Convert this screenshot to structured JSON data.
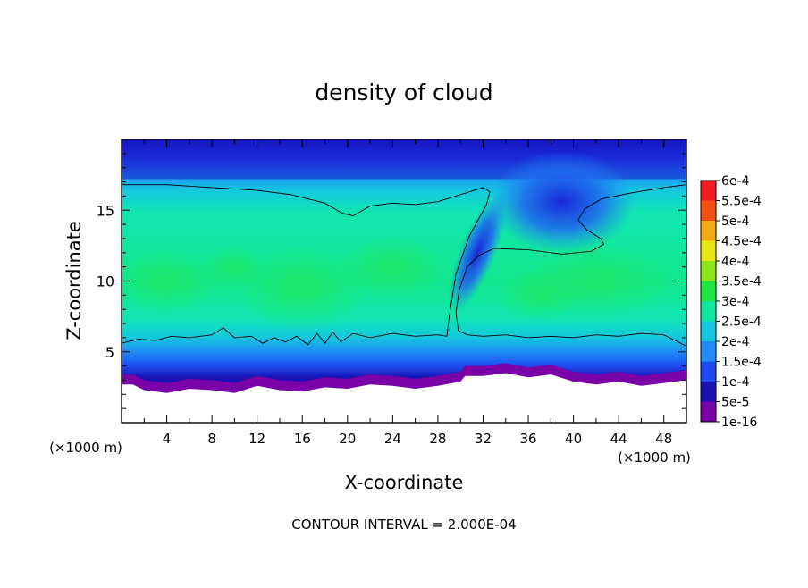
{
  "chart_data": {
    "type": "heatmap",
    "title": "density of cloud",
    "xlabel": "X-coordinate",
    "ylabel": "Z-coordinate",
    "x_unit_label": "(×1000 m)",
    "x_unit_label_right": "(×1000 m)",
    "footer": "CONTOUR INTERVAL = 2.000E-04",
    "xlim": [
      0,
      50
    ],
    "ylim": [
      0,
      20
    ],
    "x_ticks": [
      {
        "value": 4,
        "label": "4"
      },
      {
        "value": 8,
        "label": "8"
      },
      {
        "value": 12,
        "label": "12"
      },
      {
        "value": 16,
        "label": "16"
      },
      {
        "value": 20,
        "label": "20"
      },
      {
        "value": 24,
        "label": "24"
      },
      {
        "value": 28,
        "label": "28"
      },
      {
        "value": 32,
        "label": "32"
      },
      {
        "value": 36,
        "label": "36"
      },
      {
        "value": 40,
        "label": "40"
      },
      {
        "value": 44,
        "label": "44"
      },
      {
        "value": 48,
        "label": "48"
      }
    ],
    "y_ticks": [
      {
        "value": 5,
        "label": "5"
      },
      {
        "value": 10,
        "label": "10"
      },
      {
        "value": 15,
        "label": "15"
      }
    ],
    "colorbar": {
      "levels": [
        {
          "label": "1e-16",
          "color": "#7a00a8"
        },
        {
          "label": "5e-5",
          "color": "#1a12b4"
        },
        {
          "label": "1e-4",
          "color": "#1c4cf0"
        },
        {
          "label": "1.5e-4",
          "color": "#1f8cf5"
        },
        {
          "label": "2e-4",
          "color": "#15c8e0"
        },
        {
          "label": "2.5e-4",
          "color": "#10e6a0"
        },
        {
          "label": "3e-4",
          "color": "#1fe640"
        },
        {
          "label": "3.5e-4",
          "color": "#8ce61a"
        },
        {
          "label": "4e-4",
          "color": "#e6e614"
        },
        {
          "label": "4.5e-4",
          "color": "#f5a814"
        },
        {
          "label": "5e-4",
          "color": "#f55014"
        },
        {
          "label": "5.5e-4",
          "color": "#f51e1e"
        },
        {
          "label": "6e-4",
          "color": "#f58282"
        }
      ]
    },
    "contour_line_2e-4": {
      "left_branch": [
        [
          0,
          5.6
        ],
        [
          1.5,
          5.9
        ],
        [
          3,
          5.8
        ],
        [
          4.4,
          6.1
        ],
        [
          6,
          6.0
        ],
        [
          8,
          6.2
        ],
        [
          9,
          6.7
        ],
        [
          10,
          6.0
        ],
        [
          11.5,
          6.1
        ],
        [
          12.5,
          5.6
        ],
        [
          13.5,
          6.0
        ],
        [
          14.5,
          5.7
        ],
        [
          15.5,
          6.1
        ],
        [
          16.5,
          5.5
        ],
        [
          17.3,
          6.3
        ],
        [
          18,
          5.6
        ],
        [
          18.7,
          6.4
        ],
        [
          19.4,
          5.7
        ],
        [
          20.5,
          6.3
        ],
        [
          22,
          6.0
        ],
        [
          24,
          6.3
        ],
        [
          26,
          6.1
        ],
        [
          28,
          6.2
        ],
        [
          28.8,
          6.1
        ],
        [
          29,
          7.5
        ],
        [
          29.6,
          10.5
        ],
        [
          30.8,
          13.2
        ],
        [
          32.3,
          15.4
        ],
        [
          32.6,
          16.3
        ],
        [
          32,
          16.6
        ],
        [
          30,
          16.1
        ],
        [
          28,
          15.6
        ],
        [
          26,
          15.4
        ],
        [
          24,
          15.5
        ],
        [
          22,
          15.3
        ],
        [
          20.5,
          14.6
        ],
        [
          19.5,
          14.8
        ],
        [
          18,
          15.5
        ],
        [
          15,
          16.1
        ],
        [
          12,
          16.4
        ],
        [
          8,
          16.6
        ],
        [
          4,
          16.8
        ],
        [
          0,
          16.8
        ]
      ],
      "right_branch": [
        [
          50,
          16.8
        ],
        [
          48,
          16.6
        ],
        [
          45,
          16.2
        ],
        [
          42.5,
          15.8
        ],
        [
          41,
          15.1
        ],
        [
          40.4,
          14.3
        ],
        [
          41.2,
          13.6
        ],
        [
          42.4,
          13.0
        ],
        [
          42.7,
          12.6
        ],
        [
          41.6,
          12.1
        ],
        [
          39,
          11.9
        ],
        [
          36,
          12.2
        ],
        [
          33,
          12.3
        ],
        [
          31.6,
          11.8
        ],
        [
          30.6,
          11.0
        ],
        [
          29.9,
          9.4
        ],
        [
          29.6,
          7.8
        ],
        [
          29.8,
          6.5
        ],
        [
          30.6,
          6.2
        ],
        [
          32,
          6.1
        ],
        [
          34,
          6.2
        ],
        [
          36,
          6.0
        ],
        [
          38,
          6.1
        ],
        [
          40,
          6.0
        ],
        [
          42,
          6.2
        ],
        [
          44,
          6.1
        ],
        [
          46,
          6.3
        ],
        [
          48,
          6.2
        ],
        [
          50,
          5.4
        ]
      ]
    },
    "cloud_base_profile": [
      [
        0,
        2.7
      ],
      [
        1,
        2.7
      ],
      [
        2,
        2.3
      ],
      [
        4,
        2.1
      ],
      [
        6,
        2.4
      ],
      [
        8,
        2.3
      ],
      [
        10,
        2.1
      ],
      [
        12,
        2.6
      ],
      [
        14,
        2.3
      ],
      [
        16,
        2.2
      ],
      [
        18,
        2.5
      ],
      [
        20,
        2.4
      ],
      [
        22,
        2.7
      ],
      [
        24,
        2.6
      ],
      [
        26,
        2.4
      ],
      [
        28,
        2.6
      ],
      [
        30,
        2.9
      ],
      [
        30.4,
        3.3
      ],
      [
        32,
        3.3
      ],
      [
        34,
        3.5
      ],
      [
        36,
        3.2
      ],
      [
        38,
        3.4
      ],
      [
        40,
        2.9
      ],
      [
        42,
        2.7
      ],
      [
        44,
        2.9
      ],
      [
        46,
        2.6
      ],
      [
        48,
        2.8
      ],
      [
        50,
        3.0
      ]
    ],
    "features": {
      "upper_dry_band_top": 18.3,
      "upper_dry_band_bottom": 17.2,
      "moist_core_value": "2.5e-4",
      "core_level": 10
    }
  }
}
